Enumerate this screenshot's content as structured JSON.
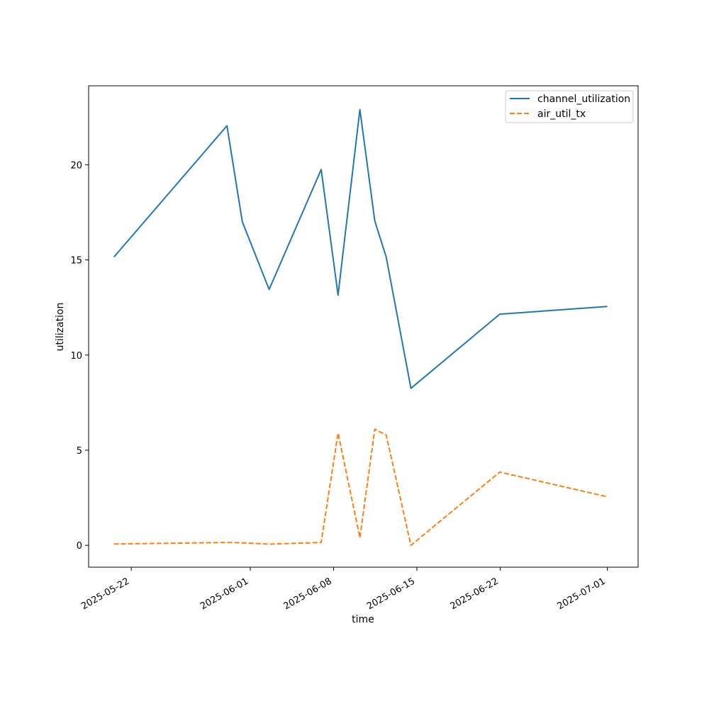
{
  "chart_data": {
    "type": "line",
    "xlabel": "time",
    "ylabel": "utilization",
    "x_scale": "date",
    "xlim": [
      "2025-05-18T10:00",
      "2025-07-03T14:00"
    ],
    "ylim": [
      -1.15,
      24.15
    ],
    "grid": false,
    "legend_position": "top-right",
    "x_ticks": [
      "2025-05-22",
      "2025-06-01",
      "2025-06-08",
      "2025-06-15",
      "2025-06-22",
      "2025-07-01"
    ],
    "y_ticks": [
      0,
      5,
      10,
      15,
      20
    ],
    "series": [
      {
        "name": "channel_utilization",
        "color": "#1f77b4",
        "dash": "solid",
        "points": [
          {
            "x": "2025-05-20T13:00",
            "y": 15.15
          },
          {
            "x": "2025-05-30T01:00",
            "y": 22.05
          },
          {
            "x": "2025-05-31T08:00",
            "y": 17.0
          },
          {
            "x": "2025-06-02T14:00",
            "y": 13.45
          },
          {
            "x": "2025-06-06T23:00",
            "y": 19.75
          },
          {
            "x": "2025-06-08T09:00",
            "y": 13.15
          },
          {
            "x": "2025-06-10T05:00",
            "y": 22.9
          },
          {
            "x": "2025-06-11T11:00",
            "y": 17.05
          },
          {
            "x": "2025-06-12T10:00",
            "y": 15.15
          },
          {
            "x": "2025-06-14T12:00",
            "y": 8.25
          },
          {
            "x": "2025-06-21T23:00",
            "y": 12.15
          },
          {
            "x": "2025-07-01T00:00",
            "y": 12.55
          }
        ]
      },
      {
        "name": "air_util_tx",
        "color": "#ff7f0e",
        "dash": "dashed",
        "points": [
          {
            "x": "2025-05-20T13:00",
            "y": 0.07
          },
          {
            "x": "2025-05-30T01:00",
            "y": 0.15
          },
          {
            "x": "2025-05-31T08:00",
            "y": 0.13
          },
          {
            "x": "2025-06-02T14:00",
            "y": 0.06
          },
          {
            "x": "2025-06-06T23:00",
            "y": 0.15
          },
          {
            "x": "2025-06-08T09:00",
            "y": 5.9
          },
          {
            "x": "2025-06-10T05:00",
            "y": 0.4
          },
          {
            "x": "2025-06-11T11:00",
            "y": 6.1
          },
          {
            "x": "2025-06-12T10:00",
            "y": 5.8
          },
          {
            "x": "2025-06-14T12:00",
            "y": 0.0
          },
          {
            "x": "2025-06-21T23:00",
            "y": 3.85
          },
          {
            "x": "2025-07-01T00:00",
            "y": 2.55
          }
        ]
      }
    ]
  }
}
